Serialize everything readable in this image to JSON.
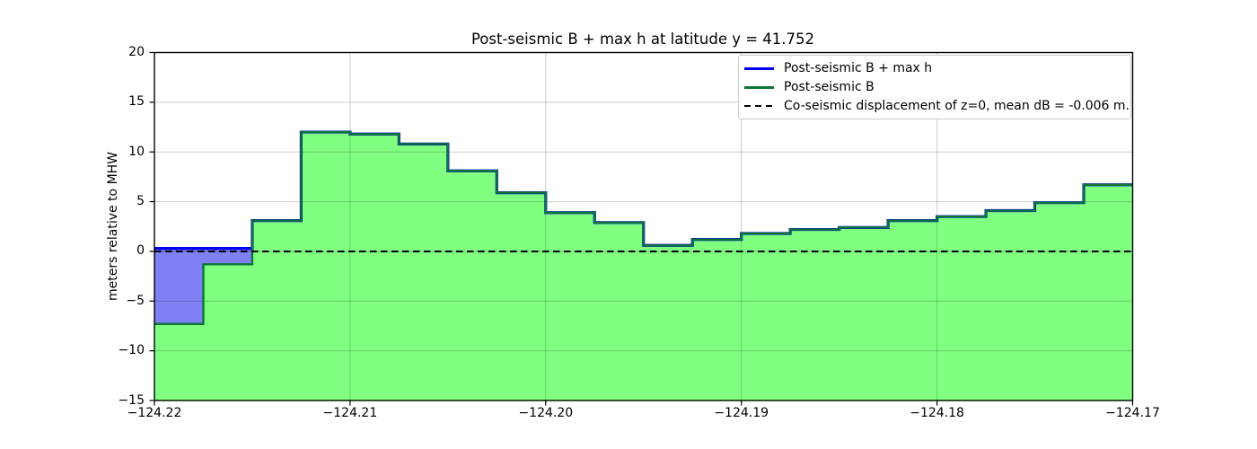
{
  "chart_data": {
    "type": "area",
    "title": "Post-seismic B + max h at latitude y = 41.752",
    "ylabel": "meters relative to MHW",
    "xlabel": "",
    "xlim": [
      -124.22,
      -124.17
    ],
    "ylim": [
      -15,
      20
    ],
    "grid": true,
    "legend_position": "upper right",
    "xticks": [
      -124.22,
      -124.21,
      -124.2,
      -124.19,
      -124.18,
      -124.17
    ],
    "xtick_labels": [
      "−124.22",
      "−124.21",
      "−124.20",
      "−124.19",
      "−124.18",
      "−124.17"
    ],
    "yticks": [
      20,
      15,
      10,
      5,
      0,
      -5,
      -10,
      -15
    ],
    "ytick_labels": [
      "20",
      "15",
      "10",
      "5",
      "0",
      "−5",
      "−10",
      "−15"
    ],
    "step_edges_x": [
      -124.22,
      -124.2175,
      -124.215,
      -124.2125,
      -124.21,
      -124.2075,
      -124.205,
      -124.2025,
      -124.2,
      -124.1975,
      -124.195,
      -124.1925,
      -124.19,
      -124.1875,
      -124.185,
      -124.1825,
      -124.18,
      -124.1775,
      -124.175,
      -124.1725,
      -124.17
    ],
    "series": [
      {
        "name": "Post-seismic B + max h",
        "color": "#0000ee",
        "style": "solid",
        "values": [
          0.3,
          0.3,
          3.1,
          12.0,
          11.8,
          10.8,
          8.1,
          5.9,
          3.9,
          2.9,
          0.6,
          1.2,
          1.8,
          2.2,
          2.4,
          3.1,
          3.5,
          4.1,
          4.9,
          6.7
        ]
      },
      {
        "name": "Post-seismic B",
        "color": "#0e7435",
        "fill_color": "#80ff80",
        "style": "solid",
        "values": [
          -7.3,
          -1.3,
          3.1,
          12.0,
          11.8,
          10.8,
          8.1,
          5.9,
          3.9,
          2.9,
          0.6,
          1.2,
          1.8,
          2.2,
          2.4,
          3.1,
          3.5,
          4.1,
          4.9,
          6.7
        ]
      },
      {
        "name": "Co-seismic displacement of z=0, mean dB = -0.006 m.",
        "color": "#000000",
        "style": "dashed",
        "y": -0.006
      }
    ],
    "wet_fill_color": "#8080f5"
  }
}
